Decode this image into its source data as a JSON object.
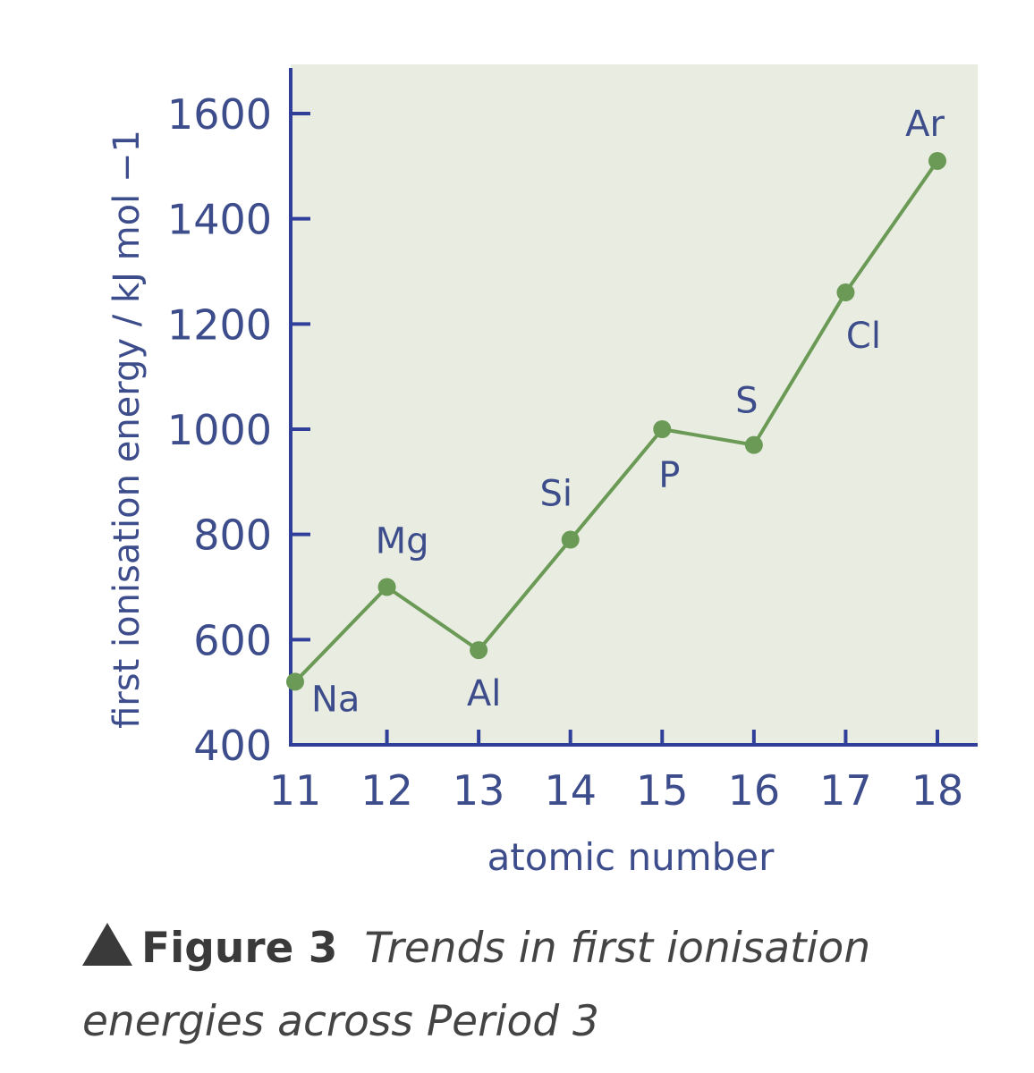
{
  "chart_data": {
    "type": "line",
    "xlabel": "atomic number",
    "ylabel": "first ionisation energy / kJ mol −1",
    "xlim": [
      11,
      18
    ],
    "ylim": [
      400,
      1600
    ],
    "x_ticks": [
      11,
      12,
      13,
      14,
      15,
      16,
      17,
      18
    ],
    "y_ticks": [
      400,
      600,
      800,
      1000,
      1200,
      1400,
      1600
    ],
    "grid": false,
    "series": [
      {
        "x": [
          11,
          12,
          13,
          14,
          15,
          16,
          17,
          18
        ],
        "values": [
          520,
          700,
          580,
          790,
          1000,
          970,
          1260,
          1510
        ],
        "point_labels": [
          "Na",
          "Mg",
          "Al",
          "Si",
          "P",
          "S",
          "Cl",
          "Ar"
        ]
      }
    ],
    "colors": {
      "plot_background": "#e9ece1",
      "axis": "#2f3f9a",
      "line": "#6a9a55",
      "text": "#3d4d8c"
    }
  },
  "caption": {
    "label": "Figure 3",
    "text": "Trends in first ionisation energies across Period 3"
  }
}
